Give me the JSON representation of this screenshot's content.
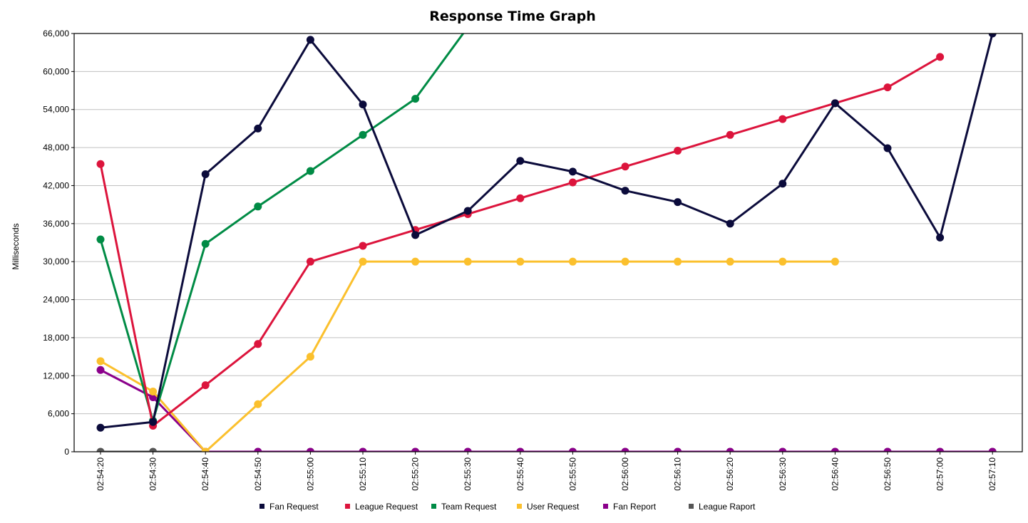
{
  "chart_data": {
    "type": "line",
    "title": "Response Time Graph",
    "xlabel": "",
    "ylabel": "Milliseconds",
    "ylim": [
      0,
      66000
    ],
    "yticks": [
      0,
      6000,
      12000,
      18000,
      24000,
      30000,
      36000,
      42000,
      48000,
      54000,
      60000,
      66000
    ],
    "ytick_labels": [
      "0",
      "6,000",
      "12,000",
      "18,000",
      "24,000",
      "30,000",
      "36,000",
      "42,000",
      "48,000",
      "54,000",
      "60,000",
      "66,000"
    ],
    "categories": [
      "02:54:20",
      "02:54:30",
      "02:54:40",
      "02:54:50",
      "02:55:00",
      "02:55:10",
      "02:55:20",
      "02:55:30",
      "02:55:40",
      "02:55:50",
      "02:56:00",
      "02:56:10",
      "02:56:20",
      "02:56:30",
      "02:56:40",
      "02:56:50",
      "02:57:00",
      "02:57:10"
    ],
    "grid": true,
    "legend_position": "bottom",
    "series": [
      {
        "name": "Fan Request",
        "color": "#0b0b3b",
        "values": [
          3800,
          4700,
          43800,
          51000,
          65000,
          54800,
          34200,
          38000,
          45900,
          44200,
          41200,
          39400,
          36000,
          42300,
          55000,
          47900,
          33800,
          66000
        ]
      },
      {
        "name": "League Request",
        "color": "#dc143c",
        "values": [
          45400,
          4100,
          10500,
          17000,
          30000,
          32500,
          35000,
          37500,
          40000,
          42500,
          45000,
          47500,
          50000,
          52500,
          55000,
          57500,
          62300,
          null
        ]
      },
      {
        "name": "Team Request",
        "color": "#008b45",
        "values": [
          33500,
          4900,
          32800,
          38700,
          44300,
          50000,
          55700,
          67000,
          null,
          null,
          null,
          null,
          null,
          null,
          null,
          null,
          null,
          null
        ]
      },
      {
        "name": "User Request",
        "color": "#fbc02d",
        "values": [
          14300,
          9500,
          0,
          7500,
          15000,
          30000,
          30000,
          30000,
          30000,
          30000,
          30000,
          30000,
          30000,
          30000,
          30000,
          null,
          null,
          null
        ]
      },
      {
        "name": "Fan Report",
        "color": "#8b008b",
        "values": [
          12900,
          8600,
          0,
          0,
          0,
          0,
          0,
          0,
          0,
          0,
          0,
          0,
          0,
          0,
          0,
          0,
          0,
          0
        ]
      },
      {
        "name": "League Raport",
        "color": "#555555",
        "values": [
          0,
          0,
          0,
          0,
          0,
          0,
          0,
          0,
          0,
          0,
          0,
          0,
          0,
          0,
          0,
          0,
          0,
          0
        ]
      }
    ]
  }
}
